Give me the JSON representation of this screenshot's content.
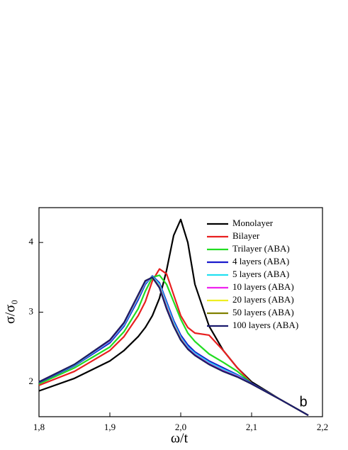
{
  "chart_data": {
    "type": "line",
    "x_label": "ω/t",
    "y_label": "σ/σ₀",
    "annotation": "b",
    "x": [
      1.8,
      1.85,
      1.9,
      1.92,
      1.94,
      1.95,
      1.96,
      1.97,
      1.98,
      1.99,
      2.0,
      2.01,
      2.02,
      2.04,
      2.06,
      2.08,
      2.1,
      2.14,
      2.18
    ],
    "series": [
      {
        "name": "Monolayer",
        "color": "#000000",
        "values": [
          1.87,
          2.05,
          2.3,
          2.45,
          2.65,
          2.78,
          2.95,
          3.2,
          3.6,
          4.1,
          4.33,
          4.0,
          3.4,
          2.8,
          2.45,
          2.2,
          2.0,
          1.75,
          1.52
        ]
      },
      {
        "name": "Bilayer",
        "color": "#e82020",
        "values": [
          1.95,
          2.15,
          2.45,
          2.65,
          2.95,
          3.15,
          3.45,
          3.62,
          3.55,
          3.25,
          2.95,
          2.78,
          2.7,
          2.67,
          2.45,
          2.2,
          1.98,
          1.75,
          1.52
        ]
      },
      {
        "name": "Trilayer (ABA)",
        "color": "#22dd22",
        "values": [
          1.97,
          2.2,
          2.5,
          2.72,
          3.05,
          3.3,
          3.5,
          3.53,
          3.4,
          3.15,
          2.9,
          2.7,
          2.58,
          2.4,
          2.28,
          2.15,
          1.98,
          1.75,
          1.52
        ]
      },
      {
        "name": "4 layers (ABA)",
        "color": "#1a1acc",
        "values": [
          1.99,
          2.23,
          2.56,
          2.8,
          3.18,
          3.4,
          3.52,
          3.42,
          3.15,
          2.88,
          2.67,
          2.53,
          2.43,
          2.3,
          2.2,
          2.1,
          1.98,
          1.75,
          1.52
        ]
      },
      {
        "name": "5 layers (ABA)",
        "color": "#22e0f0",
        "values": [
          2.0,
          2.24,
          2.58,
          2.82,
          3.21,
          3.42,
          3.51,
          3.4,
          3.12,
          2.85,
          2.64,
          2.5,
          2.41,
          2.28,
          2.18,
          2.09,
          1.97,
          1.75,
          1.52
        ]
      },
      {
        "name": "10 layers (ABA)",
        "color": "#ee22ee",
        "values": [
          2.0,
          2.25,
          2.59,
          2.84,
          3.23,
          3.44,
          3.5,
          3.37,
          3.08,
          2.82,
          2.62,
          2.48,
          2.39,
          2.26,
          2.16,
          2.08,
          1.97,
          1.75,
          1.52
        ]
      },
      {
        "name": "20 layers (ABA)",
        "color": "#eeee22",
        "values": [
          2.0,
          2.25,
          2.6,
          2.85,
          3.24,
          3.45,
          3.5,
          3.36,
          3.06,
          2.81,
          2.61,
          2.47,
          2.38,
          2.25,
          2.15,
          2.07,
          1.97,
          1.75,
          1.52
        ]
      },
      {
        "name": "50 layers (ABA)",
        "color": "#808000",
        "values": [
          2.0,
          2.25,
          2.6,
          2.85,
          3.25,
          3.45,
          3.5,
          3.35,
          3.05,
          2.8,
          2.6,
          2.47,
          2.38,
          2.25,
          2.15,
          2.07,
          1.97,
          1.75,
          1.52
        ]
      },
      {
        "name": "100 layers (ABA)",
        "color": "#1a1a6e",
        "values": [
          2.0,
          2.25,
          2.6,
          2.85,
          3.25,
          3.45,
          3.5,
          3.35,
          3.05,
          2.8,
          2.6,
          2.47,
          2.38,
          2.25,
          2.15,
          2.07,
          1.97,
          1.75,
          1.52
        ]
      }
    ],
    "xlim": [
      1.8,
      2.2
    ],
    "xticks": [
      {
        "value": 1.8,
        "label": "1,8"
      },
      {
        "value": 1.9,
        "label": "1,9"
      },
      {
        "value": 2.0,
        "label": "2,0"
      },
      {
        "value": 2.1,
        "label": "2,1"
      },
      {
        "value": 2.2,
        "label": "2,2"
      }
    ],
    "ylim": [
      1.5,
      4.5
    ],
    "yticks": [
      2,
      3,
      4
    ],
    "legend": "upper right"
  }
}
